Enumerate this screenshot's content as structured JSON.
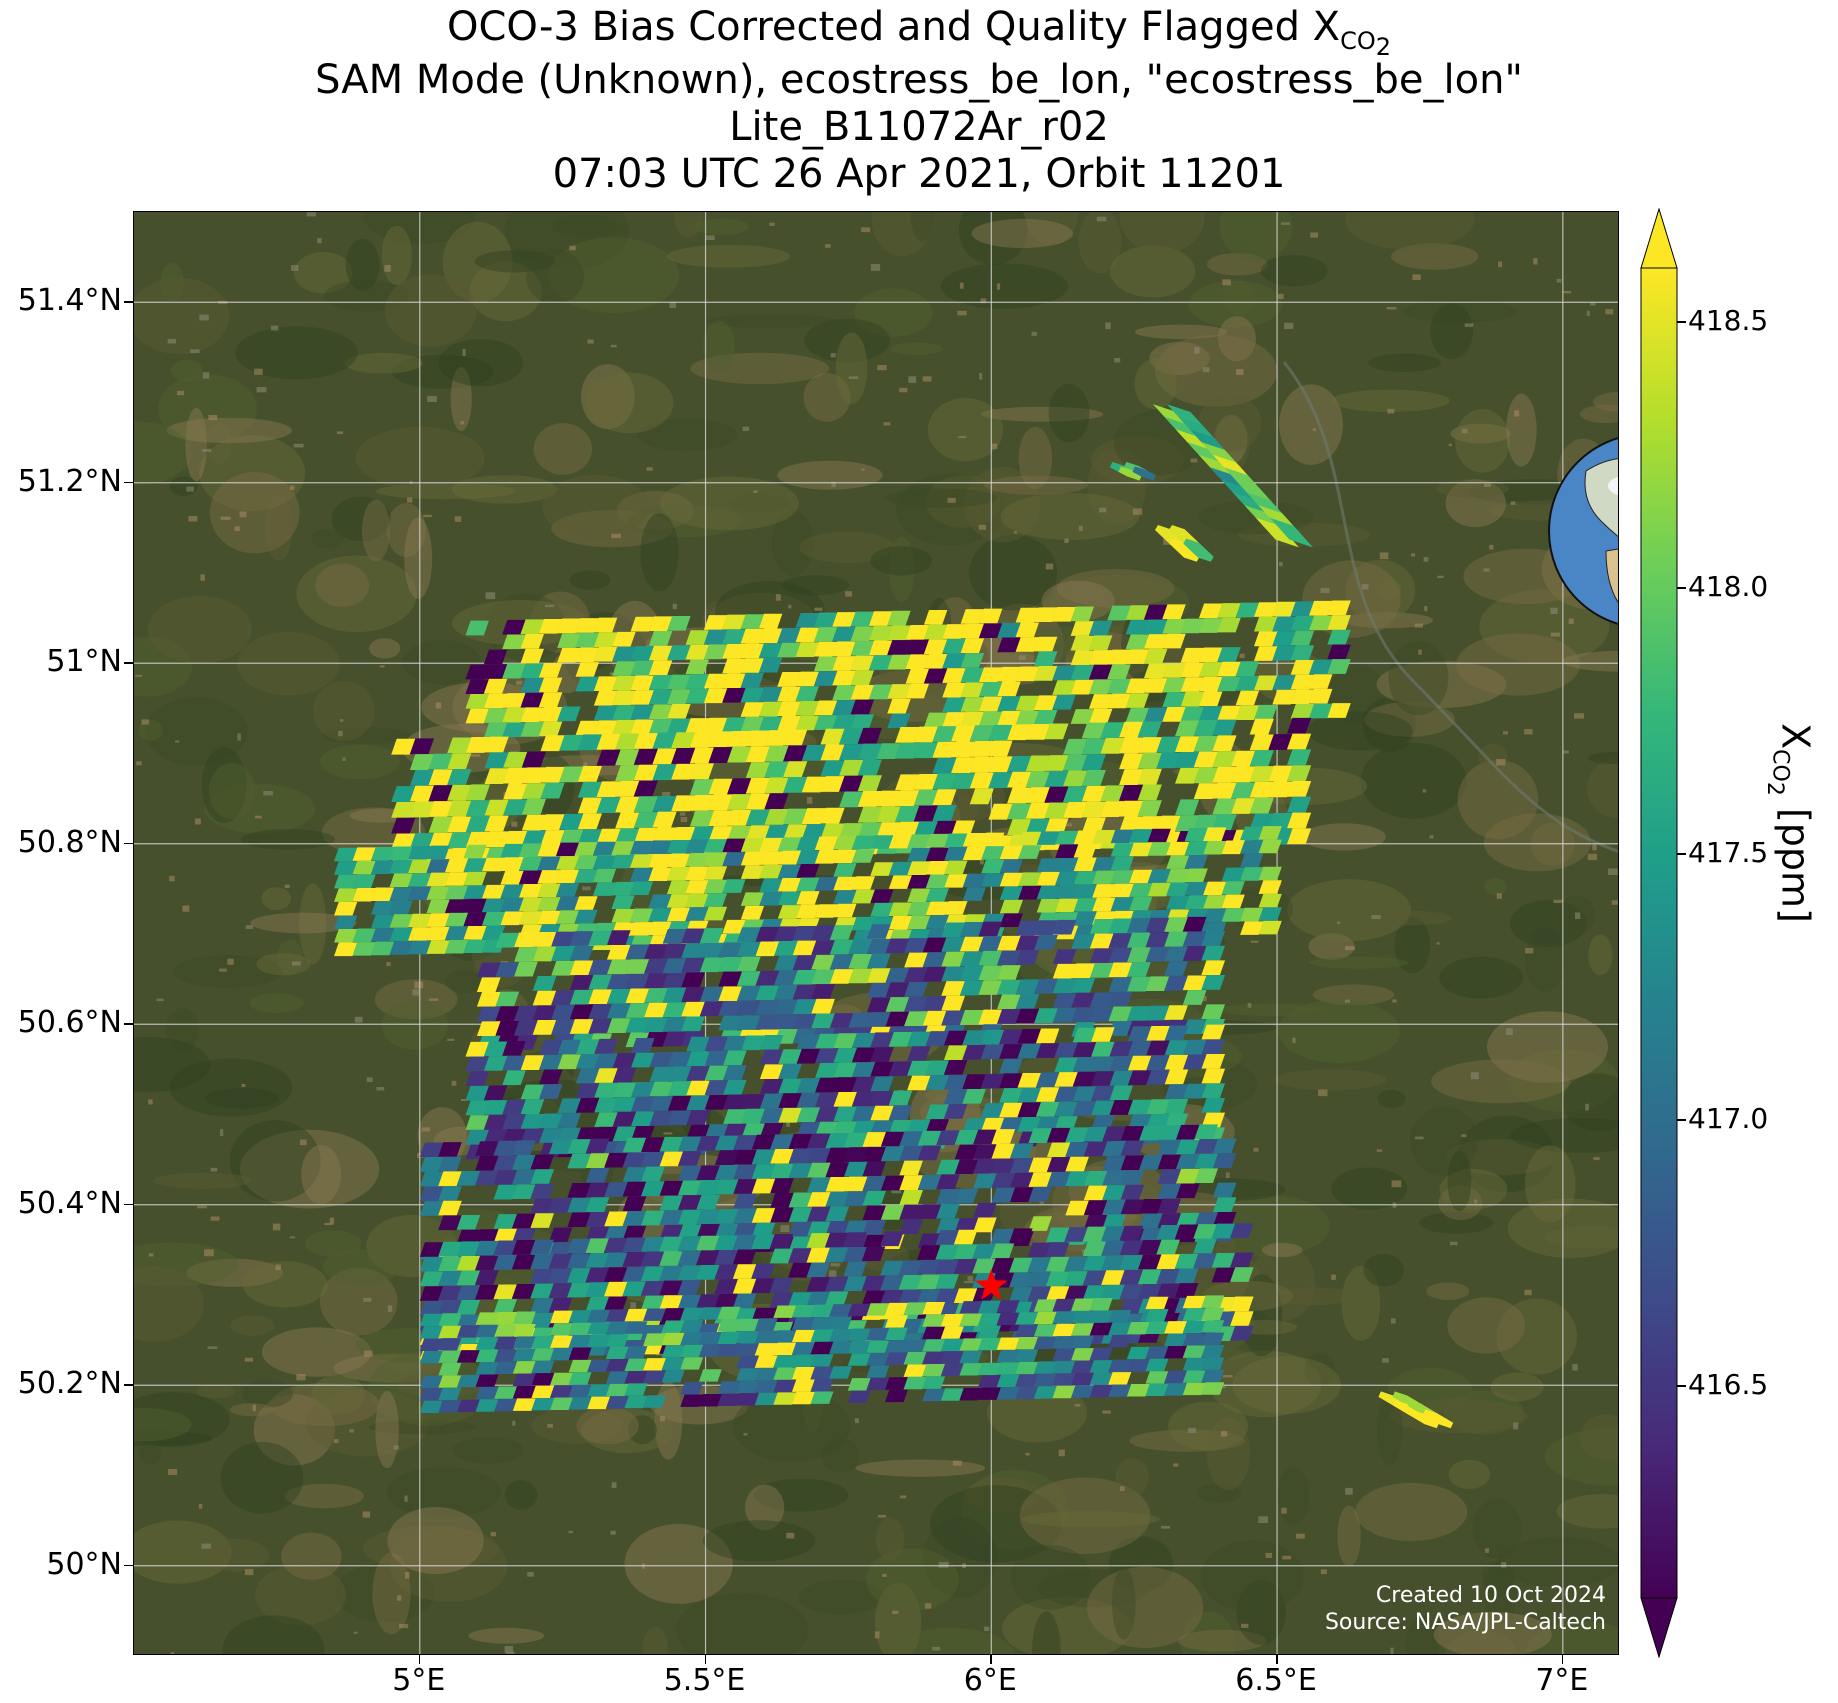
{
  "title": {
    "line1_prefix": "OCO-3 Bias Corrected and Quality Flagged X",
    "line1_sub": "CO",
    "line1_subsub": "2",
    "line2": "SAM Mode (Unknown), ecostress_be_lon, \"ecostress_be_lon\"",
    "line3": "Lite_B11072Ar_r02",
    "line4": "07:03 UTC 26 Apr 2021, Orbit 11201"
  },
  "credit": {
    "created": "Created 10 Oct 2024",
    "source": "Source: NASA/JPL-Caltech"
  },
  "axes": {
    "lon_range": [
      4.5,
      7.1
    ],
    "lat_range": [
      49.9,
      51.5
    ],
    "lat_ticks": [
      {
        "value": 51.4,
        "label": "51.4°N"
      },
      {
        "value": 51.2,
        "label": "51.2°N"
      },
      {
        "value": 51.0,
        "label": "51°N"
      },
      {
        "value": 50.8,
        "label": "50.8°N"
      },
      {
        "value": 50.6,
        "label": "50.6°N"
      },
      {
        "value": 50.4,
        "label": "50.4°N"
      },
      {
        "value": 50.2,
        "label": "50.2°N"
      },
      {
        "value": 50.0,
        "label": "50°N"
      }
    ],
    "lon_ticks": [
      {
        "value": 5.0,
        "label": "5°E"
      },
      {
        "value": 5.5,
        "label": "5.5°E"
      },
      {
        "value": 6.0,
        "label": "6°E"
      },
      {
        "value": 6.5,
        "label": "6.5°E"
      },
      {
        "value": 7.0,
        "label": "7°E"
      }
    ],
    "gridlines": true
  },
  "colorbar": {
    "label_prefix": "X",
    "label_sub": "CO",
    "label_subsub": "2",
    "label_suffix": " [ppm]",
    "range": [
      416.1,
      418.6
    ],
    "extend": "both",
    "ticks": [
      {
        "value": 416.5,
        "label": "416.5"
      },
      {
        "value": 417.0,
        "label": "417.0"
      },
      {
        "value": 417.5,
        "label": "417.5"
      },
      {
        "value": 418.0,
        "label": "418.0"
      },
      {
        "value": 418.5,
        "label": "418.5"
      }
    ],
    "colormap": "viridis"
  },
  "chart_data": {
    "type": "heatmap",
    "quantity": "XCO2 [ppm]",
    "target_site": {
      "lon": 6.0,
      "lat": 50.31,
      "marker": "red-star"
    },
    "swaths": [
      {
        "lon_start": 5.08,
        "lon_end": 6.62,
        "lat_top": 51.07,
        "lat_bottom": 50.94,
        "mean_xco2": 418.2
      },
      {
        "lon_start": 4.95,
        "lon_end": 6.55,
        "lat_top": 50.94,
        "lat_bottom": 50.8,
        "mean_xco2": 418.35
      },
      {
        "lon_start": 4.85,
        "lon_end": 6.5,
        "lat_top": 50.82,
        "lat_bottom": 50.7,
        "mean_xco2": 417.9
      },
      {
        "lon_start": 5.1,
        "lon_end": 6.4,
        "lat_top": 50.72,
        "lat_bottom": 50.59,
        "mean_xco2": 417.2
      },
      {
        "lon_start": 5.08,
        "lon_end": 6.4,
        "lat_top": 50.6,
        "lat_bottom": 50.47,
        "mean_xco2": 416.9
      },
      {
        "lon_start": 5.0,
        "lon_end": 6.42,
        "lat_top": 50.49,
        "lat_bottom": 50.36,
        "mean_xco2": 416.8
      },
      {
        "lon_start": 5.0,
        "lon_end": 6.45,
        "lat_top": 50.38,
        "lat_bottom": 50.25,
        "mean_xco2": 417.0
      },
      {
        "lon_start": 5.0,
        "lon_end": 6.4,
        "lat_top": 50.3,
        "lat_bottom": 50.19,
        "mean_xco2": 417.3
      }
    ],
    "isolated_segments": [
      {
        "lon": [
          6.3,
          6.5
        ],
        "lat": [
          51.28,
          51.14
        ],
        "mean_xco2": 417.9
      },
      {
        "lon": [
          6.21,
          6.24
        ],
        "lat": [
          51.22,
          51.21
        ],
        "mean_xco2": 417.6
      },
      {
        "lon": [
          6.29,
          6.34
        ],
        "lat": [
          51.15,
          51.12
        ],
        "mean_xco2": 418.3
      },
      {
        "lon": [
          6.68,
          6.76
        ],
        "lat": [
          50.19,
          50.16
        ],
        "mean_xco2": 418.6
      }
    ]
  }
}
